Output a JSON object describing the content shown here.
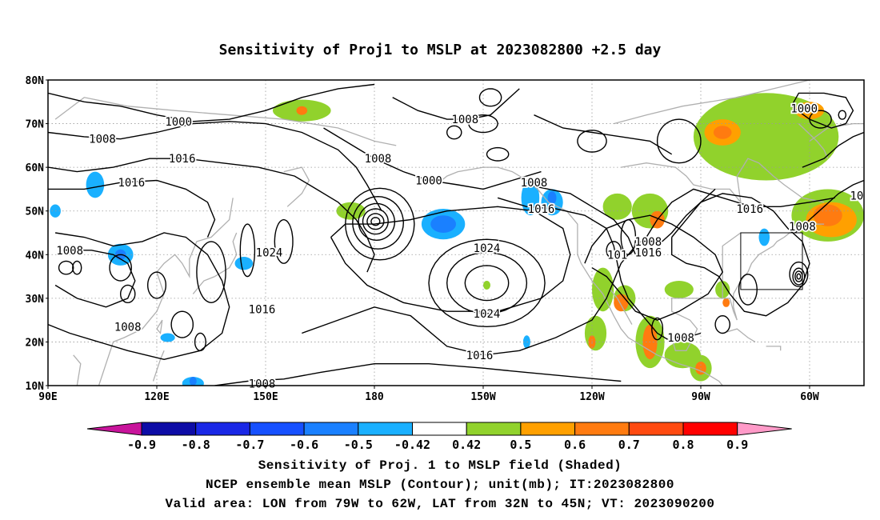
{
  "title": "Sensitivity of Proj1 to MSLP at 2023082800 +2.5 day",
  "map": {
    "lat_labels": [
      "80N",
      "70N",
      "60N",
      "50N",
      "40N",
      "30N",
      "20N",
      "10N"
    ],
    "lon_labels": [
      "90E",
      "120E",
      "150E",
      "180",
      "150W",
      "120W",
      "90W",
      "60W"
    ],
    "extent": {
      "lon_min": 90,
      "lon_max": 315,
      "lat_min": 10,
      "lat_max": 80
    },
    "grid": "dotted",
    "coastline_color": "#b0b0b0",
    "valid_box": {
      "lon_w": -79,
      "lon_e": -62,
      "lat_s": 32,
      "lat_n": 45
    }
  },
  "contours": {
    "labels": [
      {
        "text": "1000",
        "lon": 126,
        "lat": 70.5
      },
      {
        "text": "1008",
        "lon": 105,
        "lat": 66.5
      },
      {
        "text": "1016",
        "lon": 127,
        "lat": 62
      },
      {
        "text": "1016",
        "lon": 113,
        "lat": 56.5
      },
      {
        "text": "1008",
        "lon": 181,
        "lat": 62
      },
      {
        "text": "1008",
        "lon": 205,
        "lat": 71
      },
      {
        "text": "1000",
        "lon": 195,
        "lat": 57
      },
      {
        "text": "1008",
        "lon": 224,
        "lat": 56.5
      },
      {
        "text": "1016",
        "lon": 226,
        "lat": 50.5
      },
      {
        "text": "1024",
        "lon": 151,
        "lat": 40.5
      },
      {
        "text": "1008",
        "lon": 96,
        "lat": 41
      },
      {
        "text": "1016",
        "lon": 149,
        "lat": 27.5
      },
      {
        "text": "1008",
        "lon": 112,
        "lat": 23.5
      },
      {
        "text": "1008",
        "lon": 149,
        "lat": 10.5
      },
      {
        "text": "1024",
        "lon": 211,
        "lat": 41.5
      },
      {
        "text": "1024",
        "lon": 211,
        "lat": 26.5
      },
      {
        "text": "1016",
        "lon": 209,
        "lat": 17
      },
      {
        "text": "101",
        "lon": 247,
        "lat": 40
      },
      {
        "text": "1016",
        "lon": 255.5,
        "lat": 40.5
      },
      {
        "text": "1008",
        "lon": 255.5,
        "lat": 43
      },
      {
        "text": "1016",
        "lon": 283.5,
        "lat": 50.5
      },
      {
        "text": "1008",
        "lon": 298,
        "lat": 46.5
      },
      {
        "text": "1008",
        "lon": 264.5,
        "lat": 21
      },
      {
        "text": "1000",
        "lon": 298.5,
        "lat": 73.5
      },
      {
        "text": "10",
        "lon": 313,
        "lat": 53.5
      }
    ]
  },
  "shading": {
    "blobs": [
      {
        "lon": 103,
        "lat": 56,
        "rx": 2.5,
        "ry": 3,
        "level": -0.5
      },
      {
        "lon": 92,
        "lat": 50,
        "rx": 1.5,
        "ry": 1.5,
        "level": -0.5
      },
      {
        "lon": 110,
        "lat": 40,
        "rx": 3.5,
        "ry": 2.5,
        "level": -0.5
      },
      {
        "lon": 110,
        "lat": 40,
        "rx": 1.5,
        "ry": 1.2,
        "level": -0.6
      },
      {
        "lon": 144,
        "lat": 38,
        "rx": 2.5,
        "ry": 1.5,
        "level": -0.5
      },
      {
        "lon": 123,
        "lat": 21,
        "rx": 2,
        "ry": 1,
        "level": -0.5
      },
      {
        "lon": 130,
        "lat": 10.5,
        "rx": 3,
        "ry": 1.5,
        "level": -0.5
      },
      {
        "lon": 130,
        "lat": 11,
        "rx": 1,
        "ry": 1,
        "level": -0.6
      },
      {
        "lon": 199,
        "lat": 47,
        "rx": 6,
        "ry": 3.5,
        "level": -0.5
      },
      {
        "lon": 199,
        "lat": 47,
        "rx": 3.5,
        "ry": 2,
        "level": -0.6
      },
      {
        "lon": 223,
        "lat": 53,
        "rx": 2.5,
        "ry": 4,
        "level": -0.5
      },
      {
        "lon": 229,
        "lat": 52,
        "rx": 3,
        "ry": 3,
        "level": -0.5
      },
      {
        "lon": 229,
        "lat": 53,
        "rx": 1.2,
        "ry": 1.5,
        "level": -0.6
      },
      {
        "lon": 287.5,
        "lat": 44,
        "rx": 1.5,
        "ry": 2,
        "level": -0.5
      },
      {
        "lon": 222,
        "lat": 20,
        "rx": 1,
        "ry": 1.5,
        "level": -0.5
      },
      {
        "lon": 160,
        "lat": 73,
        "rx": 8,
        "ry": 2.5,
        "level": 0.42
      },
      {
        "lon": 160,
        "lat": 73,
        "rx": 1.5,
        "ry": 1,
        "level": 0.6
      },
      {
        "lon": 173.5,
        "lat": 50,
        "rx": 4,
        "ry": 2,
        "level": 0.42
      },
      {
        "lon": 211,
        "lat": 33,
        "rx": 1,
        "ry": 1,
        "level": 0.42
      },
      {
        "lon": 243,
        "lat": 32,
        "rx": 3,
        "ry": 5,
        "level": 0.42
      },
      {
        "lon": 249,
        "lat": 30,
        "rx": 3,
        "ry": 3,
        "level": 0.42
      },
      {
        "lon": 248,
        "lat": 29,
        "rx": 2,
        "ry": 2,
        "level": 0.6
      },
      {
        "lon": 256,
        "lat": 20,
        "rx": 4,
        "ry": 6,
        "level": 0.42
      },
      {
        "lon": 256,
        "lat": 20,
        "rx": 2,
        "ry": 4,
        "level": 0.6
      },
      {
        "lon": 265,
        "lat": 17,
        "rx": 5,
        "ry": 3,
        "level": 0.42
      },
      {
        "lon": 270,
        "lat": 14,
        "rx": 3,
        "ry": 3,
        "level": 0.42
      },
      {
        "lon": 270,
        "lat": 14,
        "rx": 1.5,
        "ry": 1.5,
        "level": 0.6
      },
      {
        "lon": 241,
        "lat": 22,
        "rx": 3,
        "ry": 4,
        "level": 0.42
      },
      {
        "lon": 240,
        "lat": 20,
        "rx": 1,
        "ry": 1.5,
        "level": 0.6
      },
      {
        "lon": 264,
        "lat": 32,
        "rx": 4,
        "ry": 2,
        "level": 0.42
      },
      {
        "lon": 256,
        "lat": 50,
        "rx": 5,
        "ry": 4,
        "level": 0.42
      },
      {
        "lon": 258,
        "lat": 48,
        "rx": 2,
        "ry": 2,
        "level": 0.6
      },
      {
        "lon": 247,
        "lat": 51,
        "rx": 4,
        "ry": 3,
        "level": 0.42
      },
      {
        "lon": 288,
        "lat": 67,
        "rx": 20,
        "ry": 10,
        "level": 0.42
      },
      {
        "lon": 276,
        "lat": 68,
        "rx": 5,
        "ry": 3,
        "level": 0.5
      },
      {
        "lon": 276,
        "lat": 68,
        "rx": 2.5,
        "ry": 1.5,
        "level": 0.6
      },
      {
        "lon": 300,
        "lat": 73,
        "rx": 4,
        "ry": 2,
        "level": 0.5
      },
      {
        "lon": 305,
        "lat": 49,
        "rx": 10,
        "ry": 6,
        "level": 0.42
      },
      {
        "lon": 306,
        "lat": 48,
        "rx": 7,
        "ry": 4,
        "level": 0.5
      },
      {
        "lon": 305,
        "lat": 49,
        "rx": 4,
        "ry": 2.5,
        "level": 0.6
      },
      {
        "lon": 276,
        "lat": 32,
        "rx": 2,
        "ry": 2,
        "level": 0.42
      },
      {
        "lon": 277,
        "lat": 29,
        "rx": 1,
        "ry": 1,
        "level": 0.6
      }
    ]
  },
  "colorbar": {
    "labels": [
      "-0.9",
      "-0.8",
      "-0.7",
      "-0.6",
      "-0.5",
      "-0.42",
      "0.42",
      "0.5",
      "0.6",
      "0.7",
      "0.8",
      "0.9"
    ],
    "colors": [
      "#0d0ca6",
      "#1a28e6",
      "#1650ff",
      "#1a80ff",
      "#1ab0ff",
      "#ffffff",
      "#91d22c",
      "#ffa000",
      "#ff7b10",
      "#ff4a10",
      "#ff0000"
    ],
    "under_color": "#c8149b",
    "over_color": "#ff9ac8",
    "level_colors": {
      "-0.6": "#1a80ff",
      "-0.5": "#1ab0ff",
      "0.42": "#91d22c",
      "0.5": "#ffa000",
      "0.6": "#ff7b10"
    }
  },
  "footer": {
    "line1": "Sensitivity of Proj. 1 to MSLP field (Shaded)",
    "line2": "NCEP ensemble mean MSLP (Contour); unit(mb); IT:2023082800",
    "line3": "Valid area: LON from 79W to 62W, LAT from 32N to 45N; VT: 2023090200"
  }
}
